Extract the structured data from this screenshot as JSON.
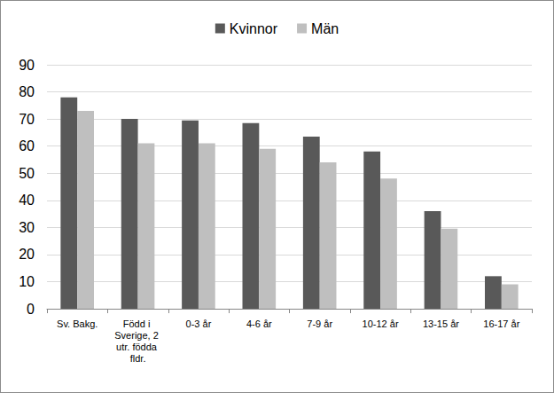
{
  "chart_data": {
    "type": "bar",
    "categories": [
      "Sv. Bakg.",
      "Född i Sverige, 2 utr. födda fldr.",
      "0-3 år",
      "4-6 år",
      "7-9 år",
      "10-12 år",
      "13-15 år",
      "16-17 år"
    ],
    "series": [
      {
        "name": "Kvinnor",
        "color": "#595959",
        "values": [
          78,
          70,
          69.5,
          68.5,
          63.5,
          58,
          36,
          12
        ]
      },
      {
        "name": "Män",
        "color": "#bfbfbf",
        "values": [
          73,
          61,
          61,
          59,
          54,
          48,
          29.5,
          9
        ]
      }
    ],
    "ylim": [
      0,
      90
    ],
    "yticks": [
      0,
      10,
      20,
      30,
      40,
      50,
      60,
      70,
      80,
      90
    ],
    "grid": true,
    "legend": "top"
  }
}
